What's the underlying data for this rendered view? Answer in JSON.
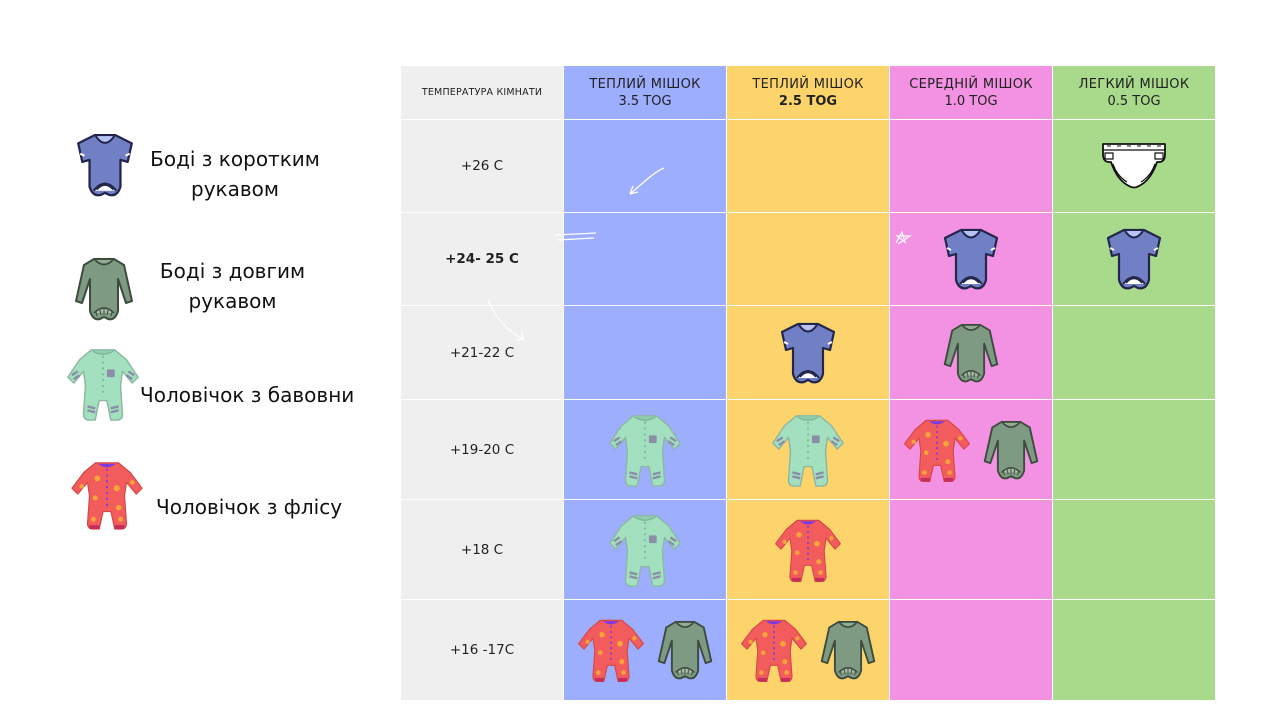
{
  "legend": [
    {
      "label": "Боді з коротким рукавом",
      "icon": "short-sleeve-bodysuit-icon"
    },
    {
      "label": "Боді з довгим рукавом",
      "icon": "long-sleeve-bodysuit-icon"
    },
    {
      "label": "Чоловічок з бавовни",
      "icon": "cotton-sleepsuit-icon"
    },
    {
      "label": "Чоловічок з флісу",
      "icon": "fleece-sleepsuit-icon"
    }
  ],
  "table": {
    "temp_header": "ТЕМПЕРАТУРА КІМНАТИ",
    "columns": [
      {
        "title": "ТЕПЛИЙ МІШОК",
        "tog": "3.5 TOG",
        "color": "#9daefe"
      },
      {
        "title": "ТЕПЛИЙ МІШОК",
        "tog": "2.5 TOG",
        "color": "#fdd46b"
      },
      {
        "title": "СЕРЕДНІЙ МІШОК",
        "tog": "1.0 TOG",
        "color": "#f391e2"
      },
      {
        "title": "ЛЕГКИЙ МІШОК",
        "tog": "0.5 TOG",
        "color": "#a9d98a"
      }
    ],
    "rows": [
      {
        "temp": "+26 C",
        "cells": [
          [],
          [],
          [],
          [
            "diaper-icon"
          ]
        ]
      },
      {
        "temp": "+24- 25 C",
        "cells": [
          [],
          [],
          [
            "short-sleeve-bodysuit-icon"
          ],
          [
            "short-sleeve-bodysuit-icon"
          ]
        ]
      },
      {
        "temp": "+21-22 C",
        "cells": [
          [],
          [
            "short-sleeve-bodysuit-icon"
          ],
          [
            "long-sleeve-bodysuit-icon"
          ],
          []
        ]
      },
      {
        "temp": "+19-20 C",
        "cells": [
          [
            "cotton-sleepsuit-icon"
          ],
          [
            "cotton-sleepsuit-icon"
          ],
          [
            "fleece-sleepsuit-icon",
            "long-sleeve-bodysuit-icon"
          ],
          []
        ]
      },
      {
        "temp": "+18 C",
        "cells": [
          [
            "cotton-sleepsuit-icon"
          ],
          [
            "fleece-sleepsuit-icon"
          ],
          [],
          []
        ]
      },
      {
        "temp": "+16 -17C",
        "cells": [
          [
            "fleece-sleepsuit-icon",
            "long-sleeve-bodysuit-icon"
          ],
          [
            "fleece-sleepsuit-icon",
            "long-sleeve-bodysuit-icon"
          ],
          [],
          []
        ]
      }
    ]
  },
  "colors": {
    "temp_column": "#efefef",
    "short_bodysuit": "#7180c4",
    "long_bodysuit": "#7f9a82",
    "cotton_sleepsuit": "#a3e0c0",
    "fleece_sleepsuit": "#f25c5c"
  }
}
